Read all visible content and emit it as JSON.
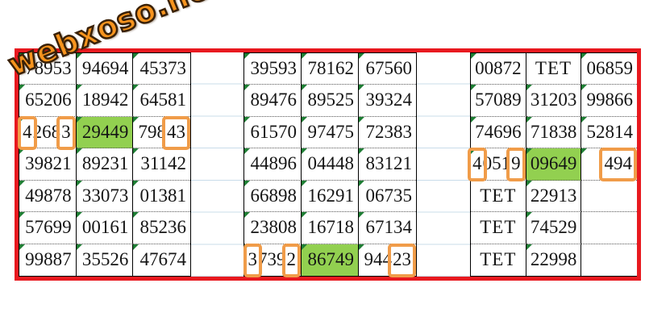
{
  "watermark": {
    "text": "webxoso.net"
  },
  "colors": {
    "frame_red": "#E8191F",
    "highlight_green": "#92D050",
    "digit_box_orange": "#F09C49",
    "corner_marker_green": "#1E7E34",
    "spacer_gridline_blue": "#C8DCEA",
    "logo_orange": "#F7941E"
  },
  "table": {
    "row_count": 7,
    "blocks": [
      {
        "id": "left",
        "rows": [
          [
            {
              "t": "78953"
            },
            {
              "t": "94694"
            },
            {
              "t": "45373"
            }
          ],
          [
            {
              "t": "65206"
            },
            {
              "t": "18942"
            },
            {
              "t": "64581"
            }
          ],
          [
            {
              "t": "42683",
              "b": [
                [
                  0,
                  1
                ],
                [
                  4,
                  5
                ]
              ]
            },
            {
              "t": "29449",
              "g": true
            },
            {
              "t": "79843",
              "b": [
                [
                  3,
                  5
                ]
              ]
            }
          ],
          [
            {
              "t": "39821"
            },
            {
              "t": "89231"
            },
            {
              "t": "31142"
            }
          ],
          [
            {
              "t": "49878"
            },
            {
              "t": "33073"
            },
            {
              "t": "01381"
            }
          ],
          [
            {
              "t": "57699"
            },
            {
              "t": "00161"
            },
            {
              "t": "85236"
            }
          ],
          [
            {
              "t": "99887"
            },
            {
              "t": "35526"
            },
            {
              "t": "47674"
            }
          ]
        ]
      },
      {
        "id": "middle",
        "rows": [
          [
            {
              "t": "39593"
            },
            {
              "t": "78162"
            },
            {
              "t": "67560"
            }
          ],
          [
            {
              "t": "89476"
            },
            {
              "t": "89525"
            },
            {
              "t": "39324"
            }
          ],
          [
            {
              "t": "61570"
            },
            {
              "t": "97475"
            },
            {
              "t": "72383"
            }
          ],
          [
            {
              "t": "44896"
            },
            {
              "t": "04448"
            },
            {
              "t": "83121"
            }
          ],
          [
            {
              "t": "66898"
            },
            {
              "t": "16291"
            },
            {
              "t": "06735"
            }
          ],
          [
            {
              "t": "23808"
            },
            {
              "t": "16718"
            },
            {
              "t": "67134"
            }
          ],
          [
            {
              "t": "37392",
              "b": [
                [
                  0,
                  1
                ],
                [
                  4,
                  5
                ]
              ]
            },
            {
              "t": "86749",
              "g": true
            },
            {
              "t": "94423",
              "b": [
                [
                  3,
                  5
                ]
              ]
            }
          ]
        ]
      },
      {
        "id": "right",
        "rows": [
          [
            {
              "t": "00872"
            },
            {
              "t": "TET"
            },
            {
              "t": "06859"
            }
          ],
          [
            {
              "t": "57089"
            },
            {
              "t": "31203"
            },
            {
              "t": "99866"
            }
          ],
          [
            {
              "t": "74696"
            },
            {
              "t": "71838"
            },
            {
              "t": "52814"
            }
          ],
          [
            {
              "t": "40519",
              "b": [
                [
                  0,
                  1
                ],
                [
                  4,
                  5
                ]
              ]
            },
            {
              "t": "09649",
              "g": true
            },
            {
              "t": "494",
              "b": [
                [
                  0,
                  3
                ]
              ]
            }
          ],
          [
            {
              "t": "TET"
            },
            {
              "t": "22913"
            },
            {
              "t": ""
            }
          ],
          [
            {
              "t": "TET"
            },
            {
              "t": "74529"
            },
            {
              "t": ""
            }
          ],
          [
            {
              "t": "TET"
            },
            {
              "t": "22998"
            },
            {
              "t": ""
            }
          ]
        ]
      }
    ]
  }
}
